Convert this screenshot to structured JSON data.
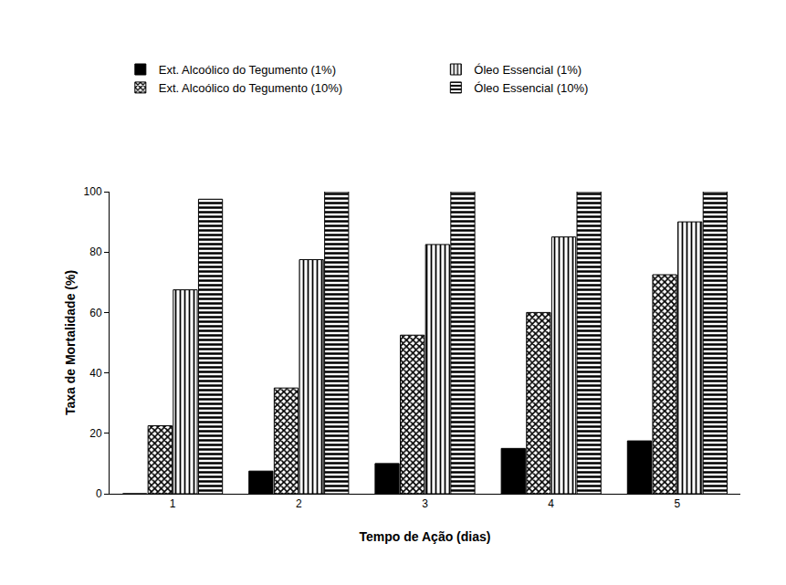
{
  "chart_data": {
    "type": "bar",
    "x_label": "Tempo de Ação (dias)",
    "y_label": "Taxa de Mortalidade (%)",
    "categories": [
      "1",
      "2",
      "3",
      "4",
      "5"
    ],
    "series": [
      {
        "name": "Ext. Alcoólico do Tegumento (1%)",
        "color": "#000000",
        "marker": "solid",
        "values": [
          0,
          7.5,
          10,
          15,
          17.5
        ]
      },
      {
        "name": "Ext. Alcoólico do Tegumento (10%)",
        "color": "#000000",
        "marker": "dots",
        "values": [
          22.5,
          35,
          52.5,
          60,
          72.5
        ]
      },
      {
        "name": "Óleo Essencial (1%)",
        "color": "#000000",
        "marker": "vertical_lines",
        "values": [
          67.5,
          77.5,
          82.5,
          85,
          90
        ]
      },
      {
        "name": "Óleo Essencial (10%)",
        "color": "#000000",
        "marker": "horizontal_lines",
        "values": [
          97.5,
          100,
          100,
          100,
          100
        ]
      }
    ],
    "ylim": [
      0,
      100
    ],
    "yticks": [
      0,
      20,
      40,
      60,
      80,
      100
    ],
    "grid": false,
    "legend": "top"
  }
}
